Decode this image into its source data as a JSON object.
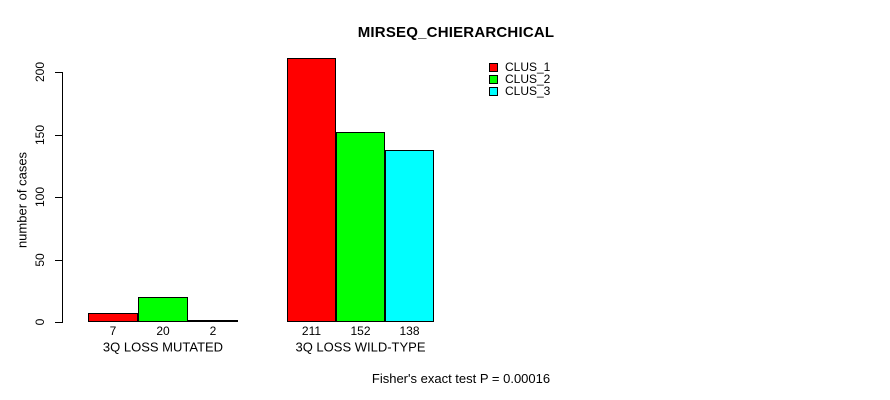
{
  "chart_data": {
    "type": "bar",
    "title": "MIRSEQ_CHIERARCHICAL",
    "xlabel": "",
    "ylabel": "number of cases",
    "categories": [
      "3Q LOSS MUTATED",
      "3Q LOSS WILD-TYPE"
    ],
    "series": [
      {
        "name": "CLUS_1",
        "color": "#FF0000",
        "values": [
          7,
          211
        ]
      },
      {
        "name": "CLUS_2",
        "color": "#00FF00",
        "values": [
          20,
          152
        ]
      },
      {
        "name": "CLUS_3",
        "color": "#00FFFF",
        "values": [
          2,
          138
        ]
      }
    ],
    "bar_value_labels": [
      [
        "7",
        "20",
        "2"
      ],
      [
        "211",
        "152",
        "138"
      ]
    ],
    "yticks": [
      0,
      50,
      100,
      150,
      200
    ],
    "ylim": [
      0,
      211
    ],
    "grid": false,
    "legend_position": "top-right",
    "annotation": "Fisher's exact test P = 0.00016"
  }
}
